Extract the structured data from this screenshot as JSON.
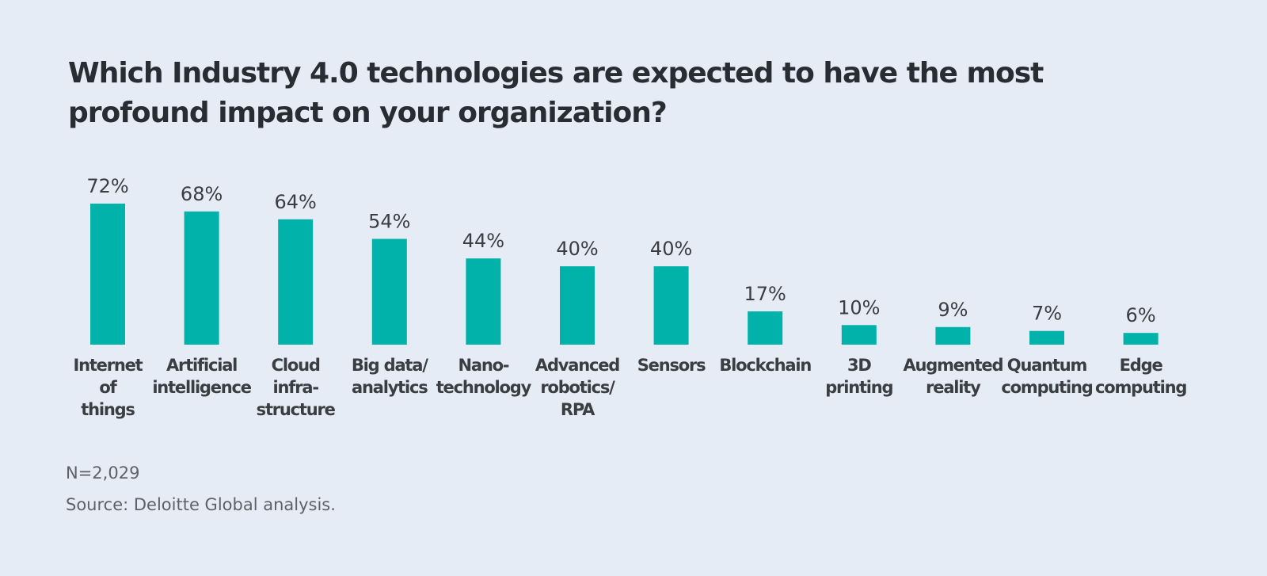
{
  "chart_data": {
    "type": "bar",
    "title": "Which Industry 4.0 technologies are expected to have the most profound impact on your organization?",
    "categories": [
      "Internet of things",
      "Artificial intelligence",
      "Cloud infra-structure",
      "Big data/ analytics",
      "Nano-technology",
      "Advanced robotics/ RPA",
      "Sensors",
      "Blockchain",
      "3D printing",
      "Augmented reality",
      "Quantum computing",
      "Edge computing"
    ],
    "category_label_lines": [
      [
        "Internet",
        "of",
        "things"
      ],
      [
        "Artificial",
        "intelligence"
      ],
      [
        "Cloud",
        "infra-",
        "structure"
      ],
      [
        "Big data/",
        "analytics"
      ],
      [
        "Nano-",
        "technology"
      ],
      [
        "Advanced",
        "robotics/",
        "RPA"
      ],
      [
        "Sensors"
      ],
      [
        "Blockchain"
      ],
      [
        "3D",
        "printing"
      ],
      [
        "Augmented",
        "reality"
      ],
      [
        "Quantum",
        "computing"
      ],
      [
        "Edge",
        "computing"
      ]
    ],
    "values": [
      72,
      68,
      64,
      54,
      44,
      40,
      40,
      17,
      10,
      9,
      7,
      6
    ],
    "value_labels": [
      "72%",
      "68%",
      "64%",
      "54%",
      "44%",
      "40%",
      "40%",
      "17%",
      "10%",
      "9%",
      "7%",
      "6%"
    ],
    "unit": "%",
    "xlabel": "",
    "ylabel": "",
    "ylim": [
      0,
      72
    ],
    "grid": false,
    "bar_color": "#00b2a9"
  },
  "notes": {
    "sample_size": "N=2,029",
    "source": "Source: Deloitte Global analysis."
  },
  "colors": {
    "background": "#e6ecf5",
    "bar": "#00b2a9",
    "title": "#282c33",
    "text": "#3a3d42",
    "note": "#5e6168"
  }
}
